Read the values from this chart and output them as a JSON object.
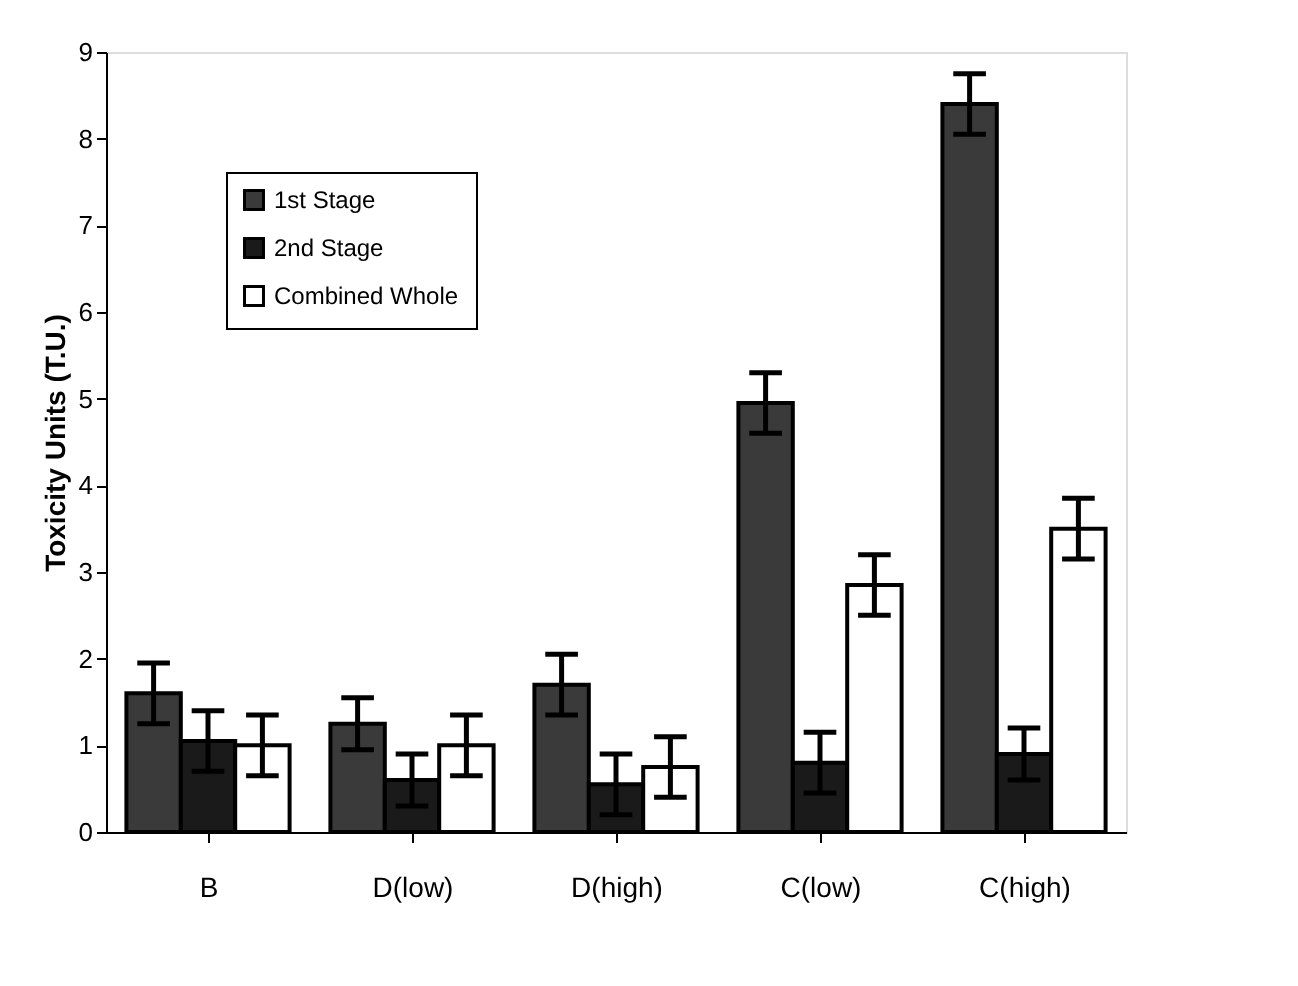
{
  "chart_data": {
    "type": "bar",
    "ylabel": "Toxicity Units (T.U.)",
    "categories": [
      "B",
      "D(low)",
      "D(high)",
      "C(low)",
      "C(high)"
    ],
    "series": [
      {
        "name": "1st Stage",
        "color": "#3a3a3a",
        "values": [
          1.6,
          1.25,
          1.7,
          4.95,
          8.4
        ],
        "errors": [
          0.35,
          0.3,
          0.35,
          0.35,
          0.35
        ]
      },
      {
        "name": "2nd Stage",
        "color": "#1a1a1a",
        "values": [
          1.05,
          0.6,
          0.55,
          0.8,
          0.9
        ],
        "errors": [
          0.35,
          0.3,
          0.35,
          0.35,
          0.3
        ]
      },
      {
        "name": "Combined Whole",
        "color": "#ffffff",
        "values": [
          1.0,
          1.0,
          0.75,
          2.85,
          3.5
        ],
        "errors": [
          0.35,
          0.35,
          0.35,
          0.35,
          0.35
        ]
      }
    ],
    "ylim": [
      0,
      9
    ],
    "yticks": [
      0,
      1,
      2,
      3,
      4,
      5,
      6,
      7,
      8,
      9
    ],
    "grid": false,
    "legend": "top left"
  }
}
